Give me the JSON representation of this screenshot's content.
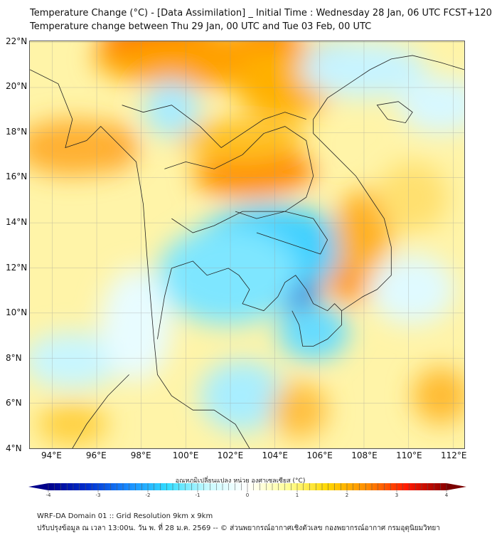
{
  "title": {
    "line1": "Temperature Change (°C) - [Data Assimilation] _ Initial Time : Wednesday 28 Jan, 06 UTC FCST+120",
    "line2": "Temperature change between Thu 29 Jan, 00 UTC and Tue 03 Feb, 00 UTC"
  },
  "map": {
    "lat_labels": [
      "22°N",
      "20°N",
      "18°N",
      "16°N",
      "14°N",
      "12°N",
      "10°N",
      "8°N",
      "6°N",
      "4°N"
    ],
    "lon_labels": [
      "94°E",
      "96°E",
      "98°E",
      "100°E",
      "102°E",
      "104°E",
      "106°E",
      "108°E",
      "110°E",
      "112°E"
    ],
    "lat_values": [
      22,
      20,
      18,
      16,
      14,
      12,
      10,
      8,
      6,
      4
    ],
    "lon_values": [
      94,
      96,
      98,
      100,
      102,
      104,
      106,
      108,
      110,
      112
    ],
    "extent": {
      "lon": [
        93,
        112.5
      ],
      "lat": [
        4,
        22.05
      ]
    }
  },
  "colorbar": {
    "title": "อุณหภูมิเปลี่ยนแปลง หน่วย องศาเซลเซียส (°C)",
    "ticks": [
      "-4",
      "-3",
      "-2",
      "-1",
      "0",
      "1",
      "2",
      "3",
      "4"
    ],
    "tick_values": [
      -4,
      -3,
      -2,
      -1,
      0,
      1,
      2,
      3,
      4
    ],
    "range": [
      -4,
      4
    ],
    "colors": [
      "#00008b",
      "#0030d0",
      "#1a8cff",
      "#33ddff",
      "#c8faff",
      "#ffffff",
      "#ffff99",
      "#ffd700",
      "#ff8c00",
      "#ff1a00",
      "#8b0000"
    ]
  },
  "footer": {
    "line1": "WRF-DA Domain 01 :: Grid Resolution 9km x 9km",
    "line2": "ปรับปรุงข้อมูล ณ เวลา 13:00น. วัน พ. ที่ 28 ม.ค. 2569 -- © ส่วนพยากรณ์อากาศเชิงตัวเลข กองพยากรณ์อากาศ กรมอุตุนิยมวิทยา"
  }
}
